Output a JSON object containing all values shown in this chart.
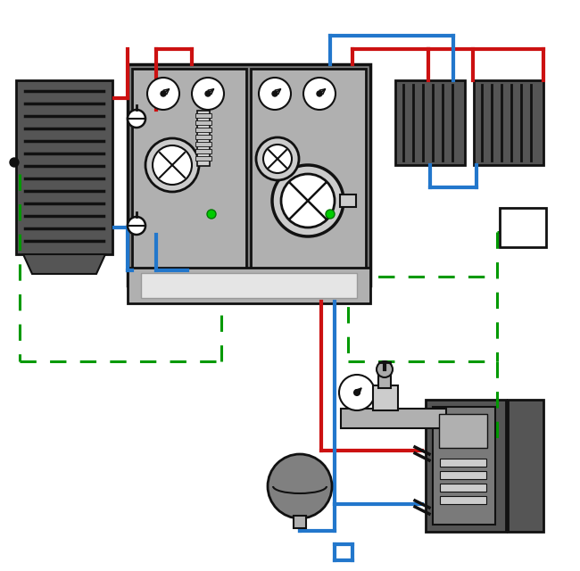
{
  "fig_width": 6.5,
  "fig_height": 6.4,
  "dpi": 100,
  "bg_color": "#ffffff",
  "red_color": "#cc1111",
  "blue_color": "#2277cc",
  "green_color": "#009900",
  "gray_dark": "#555555",
  "gray_med": "#808080",
  "gray_light": "#b0b0b0",
  "gray_lighter": "#cccccc",
  "black": "#111111",
  "line_width": 3.0,
  "dashed_lw": 2.2
}
